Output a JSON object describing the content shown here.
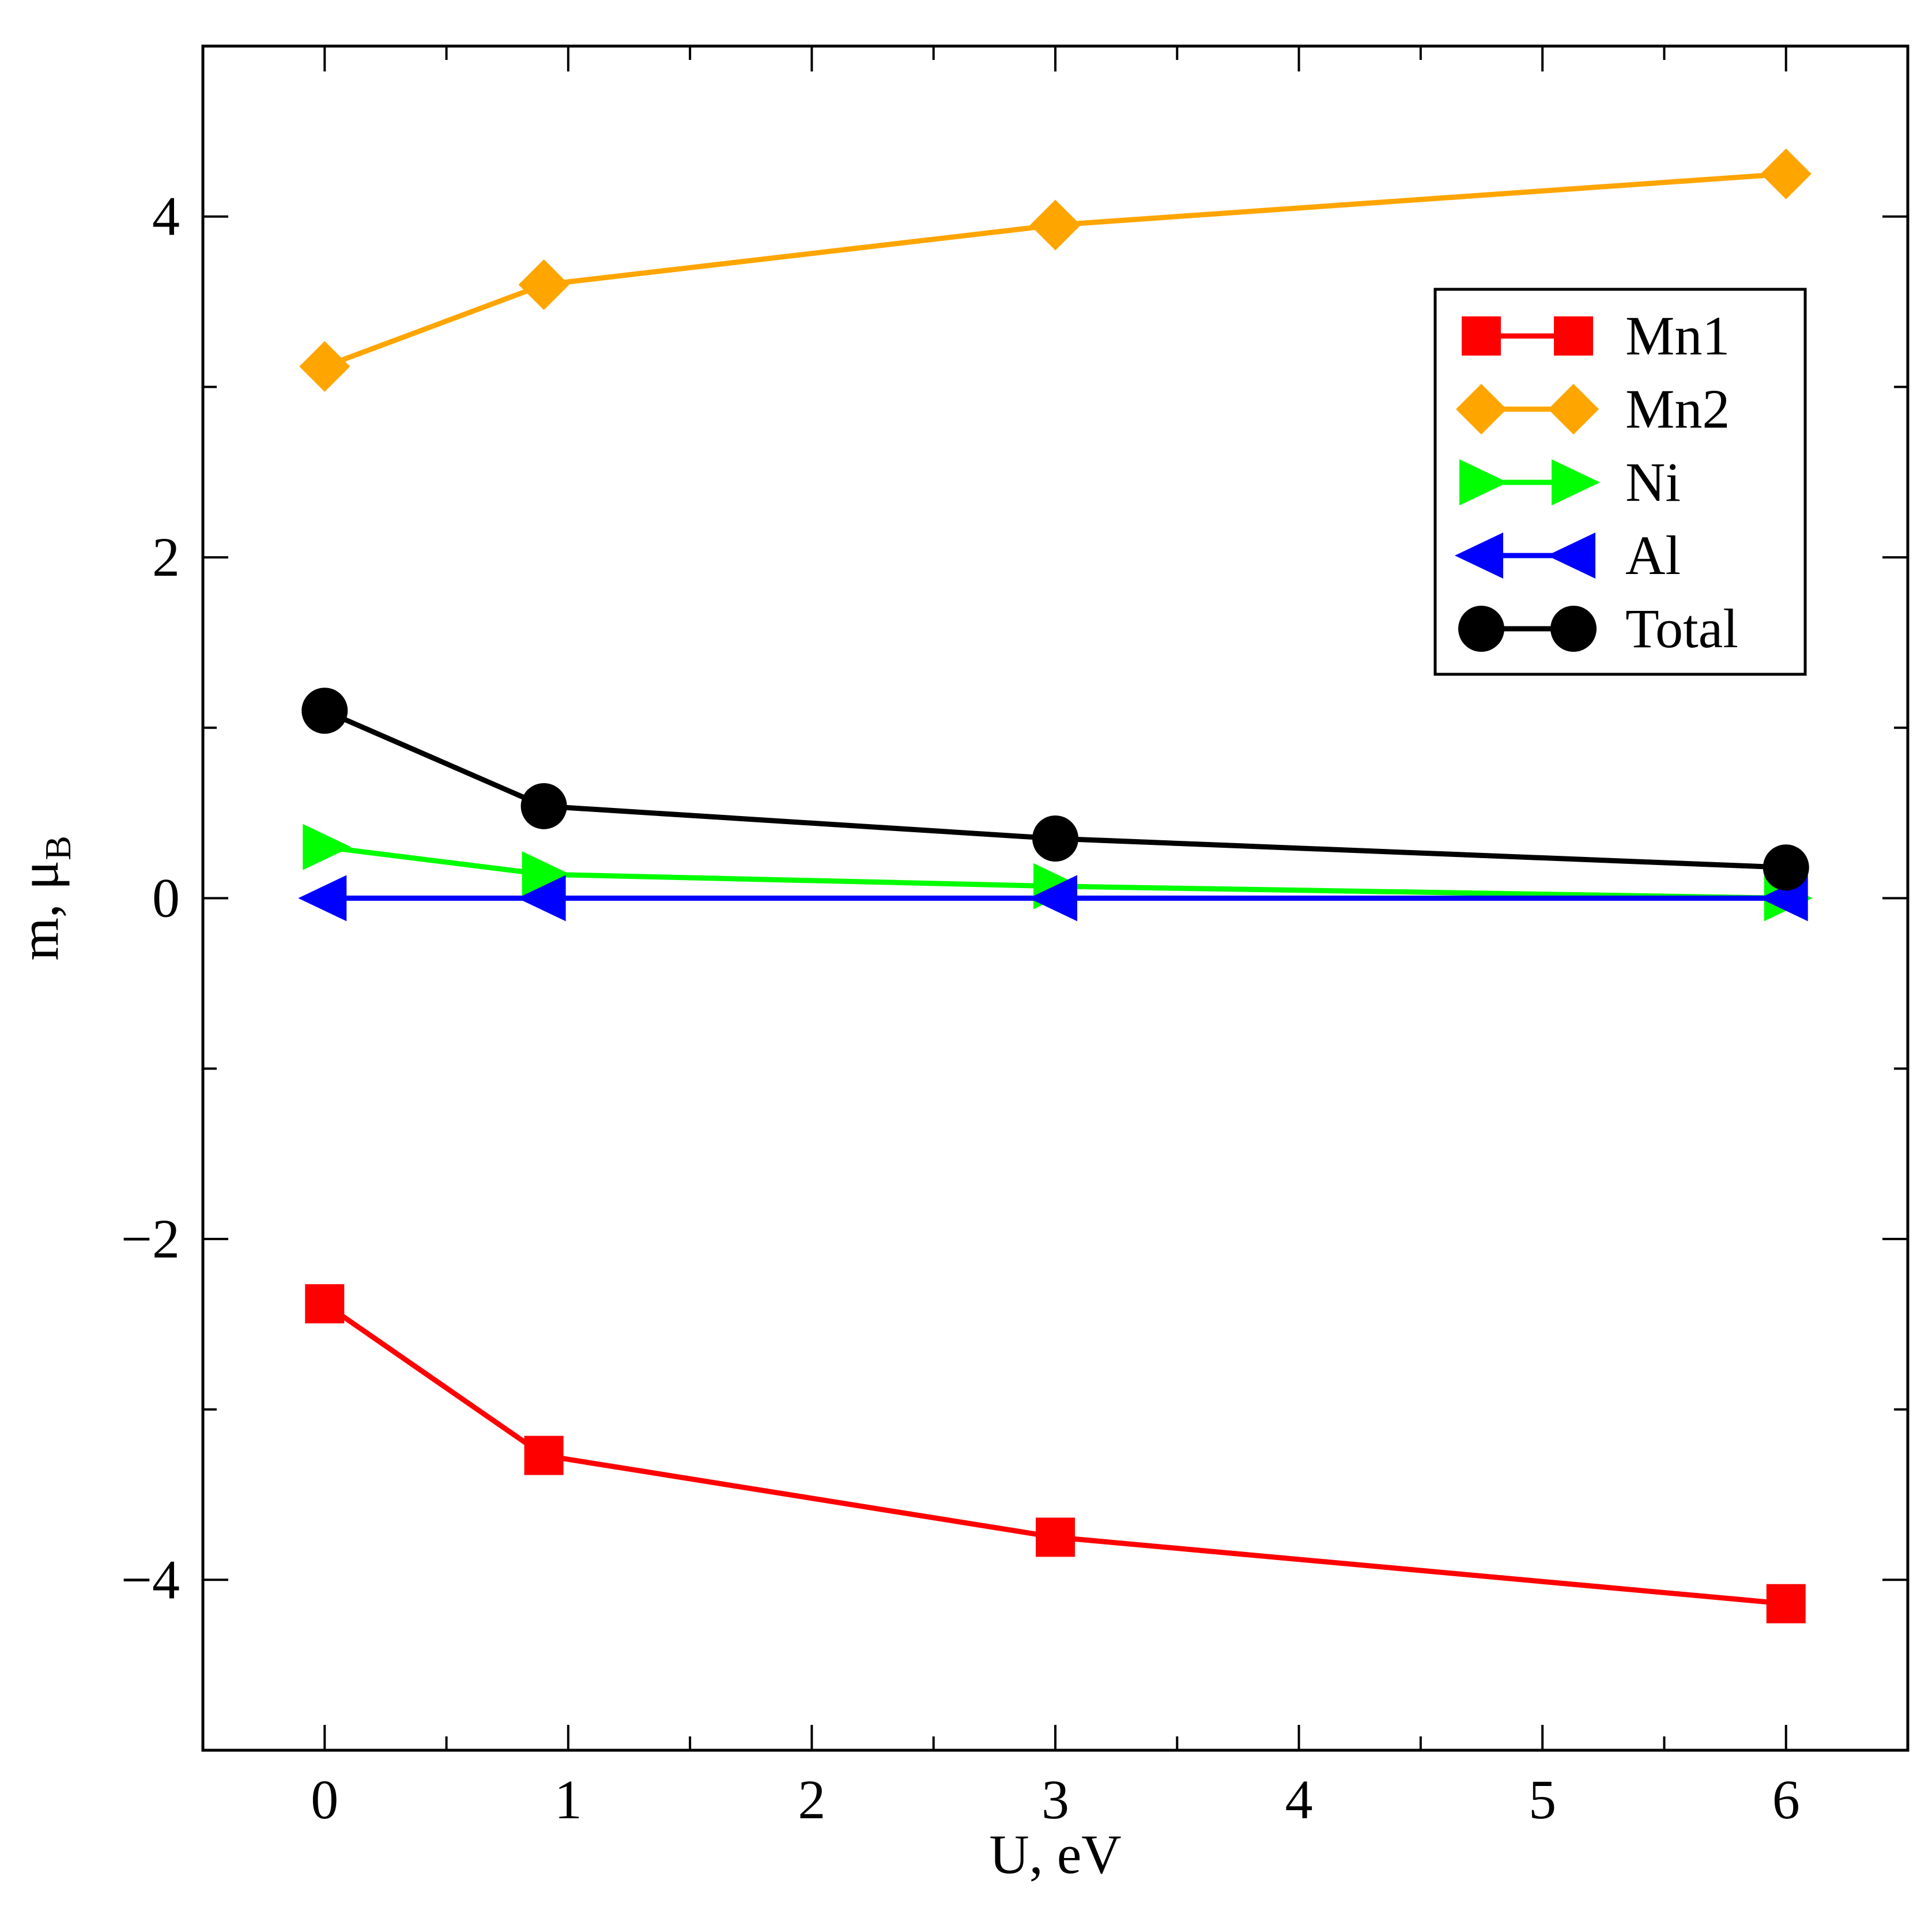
{
  "chart_data": {
    "type": "line",
    "title": "",
    "xlabel": "U, eV",
    "ylabel": "m, μ",
    "ylabel_subscript": "B",
    "xlim": [
      -0.5,
      6.5
    ],
    "ylim": [
      -5,
      5
    ],
    "x_ticks": [
      0,
      1,
      2,
      3,
      4,
      5,
      6
    ],
    "x_tick_labels": [
      "0",
      "1",
      "2",
      "3",
      "4",
      "5",
      "6"
    ],
    "y_major_ticks": [
      -4,
      -2,
      0,
      2,
      4
    ],
    "y_tick_labels": [
      "−4",
      "−2",
      "0",
      "2",
      "4"
    ],
    "y_minor_ticks": [
      -5,
      -3,
      -1,
      1,
      3,
      5
    ],
    "x_minor_ticks": [
      0.5,
      1.5,
      2.5,
      3.5,
      4.5,
      5.5
    ],
    "grid": false,
    "legend_position": "top-right",
    "x": [
      0,
      0.9,
      3,
      6
    ],
    "series": [
      {
        "name": "Mn1",
        "color": "#ff0000",
        "marker": "square",
        "values": [
          -2.38,
          -3.27,
          -3.75,
          -4.14
        ]
      },
      {
        "name": "Mn2",
        "color": "#ffa500",
        "marker": "diamond",
        "values": [
          3.12,
          3.6,
          3.95,
          4.25
        ]
      },
      {
        "name": "Ni",
        "color": "#00ff00",
        "marker": "triangle-right",
        "values": [
          0.3,
          0.14,
          0.07,
          0.0
        ]
      },
      {
        "name": "Al",
        "color": "#0000ff",
        "marker": "triangle-left",
        "values": [
          0.0,
          0.0,
          0.0,
          0.0
        ]
      },
      {
        "name": "Total",
        "color": "#000000",
        "marker": "circle",
        "values": [
          1.1,
          0.54,
          0.35,
          0.18
        ]
      }
    ]
  }
}
